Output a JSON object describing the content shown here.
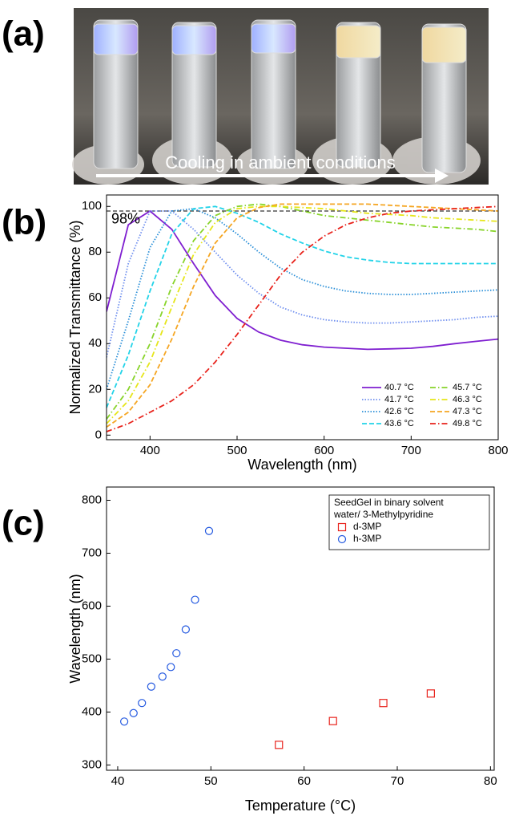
{
  "panel_labels": [
    "(a)",
    "(b)",
    "(c)"
  ],
  "photo": {
    "caption": "Cooling in ambient conditions"
  },
  "chart_data": [
    {
      "type": "line",
      "xlabel": "Wavelength (nm)",
      "ylabel": "Normalized Transmittance (%)",
      "x": [
        350,
        375,
        400,
        425,
        450,
        475,
        500,
        525,
        550,
        575,
        600,
        625,
        650,
        675,
        700,
        725,
        750,
        775,
        800
      ],
      "xlim": [
        350,
        800
      ],
      "ylim": [
        -2,
        105
      ],
      "xticks": [
        400,
        500,
        600,
        700,
        800
      ],
      "yticks": [
        0,
        20,
        40,
        60,
        80,
        100
      ],
      "legend_position": "lower right",
      "annotations": [
        {
          "text": "98%",
          "y": 98
        }
      ],
      "series": [
        {
          "name": "40.7 °C",
          "color": "#7f1fd0",
          "dash": "solid",
          "values": [
            54,
            92,
            98,
            90,
            75,
            61,
            51,
            45,
            41.5,
            39.5,
            38.5,
            38,
            37.5,
            37.7,
            38,
            38.8,
            40,
            41,
            42
          ]
        },
        {
          "name": "41.7 °C",
          "color": "#6f8fef",
          "dash": "dotted",
          "values": [
            34,
            75,
            98,
            98,
            90,
            80,
            70,
            62,
            56,
            52.5,
            50.5,
            49.5,
            49,
            49,
            49.5,
            50,
            50.5,
            51.5,
            52
          ]
        },
        {
          "name": "42.6 °C",
          "color": "#2a8fd8",
          "dash": "dotted",
          "values": [
            20,
            50,
            82,
            98,
            99,
            95,
            88,
            80,
            73,
            68,
            65,
            63,
            62,
            61.5,
            61.5,
            62,
            62.5,
            63,
            63.5
          ]
        },
        {
          "name": "43.6 °C",
          "color": "#22d3e8",
          "dash": "dashed",
          "values": [
            12,
            35,
            63,
            88,
            99,
            100,
            97,
            93,
            88,
            84,
            80.5,
            78,
            76.5,
            75.5,
            75,
            75,
            75,
            75,
            75
          ]
        },
        {
          "name": "45.7 °C",
          "color": "#88d42a",
          "dash": "dashdot",
          "values": [
            7,
            20,
            40,
            65,
            85,
            96,
            100,
            101,
            100,
            98,
            96,
            95,
            94,
            93,
            92,
            91,
            90.5,
            90,
            89
          ]
        },
        {
          "name": "46.3 °C",
          "color": "#e6e61a",
          "dash": "dashdot",
          "values": [
            5,
            15,
            32,
            56,
            79,
            93,
            99,
            100,
            100,
            99.5,
            99,
            98,
            97,
            96.5,
            96,
            95,
            94.5,
            94,
            93.5
          ]
        },
        {
          "name": "47.3 °C",
          "color": "#f5a623",
          "dash": "dashed",
          "values": [
            3.5,
            10,
            22,
            42,
            65,
            84,
            95,
            99.5,
            101,
            101,
            101,
            101,
            101,
            100.5,
            100,
            99.5,
            99,
            98.5,
            98
          ]
        },
        {
          "name": "49.8 °C",
          "color": "#e8231c",
          "dash": "dashdot",
          "values": [
            1.5,
            5,
            10,
            15,
            22,
            32,
            44,
            57,
            70,
            80,
            87,
            92,
            95,
            97,
            98,
            98.5,
            99,
            99.5,
            100
          ]
        }
      ]
    },
    {
      "type": "scatter",
      "xlabel": "Temperature (°C)",
      "ylabel": "Wavelength (nm)",
      "xlim": [
        38.8,
        80.4
      ],
      "ylim": [
        290,
        825
      ],
      "xticks": [
        40,
        50,
        60,
        70,
        80
      ],
      "yticks": [
        300,
        400,
        500,
        600,
        700,
        800
      ],
      "legend_position": "upper right",
      "legend_title": [
        "SeedGel in binary solvent",
        "water/ 3-Methylpyridine"
      ],
      "series": [
        {
          "name": "d-3MP",
          "color": "#e8231c",
          "marker": "square",
          "x": [
            57.3,
            63.1,
            68.5,
            73.6
          ],
          "values": [
            338,
            383,
            417,
            435
          ]
        },
        {
          "name": "h-3MP",
          "color": "#2459e0",
          "marker": "circle",
          "x": [
            40.7,
            41.7,
            42.6,
            43.6,
            44.8,
            45.7,
            46.3,
            47.3,
            48.3,
            49.8
          ],
          "values": [
            382,
            398,
            417,
            448,
            467,
            485,
            511,
            556,
            612,
            742
          ]
        }
      ]
    }
  ]
}
